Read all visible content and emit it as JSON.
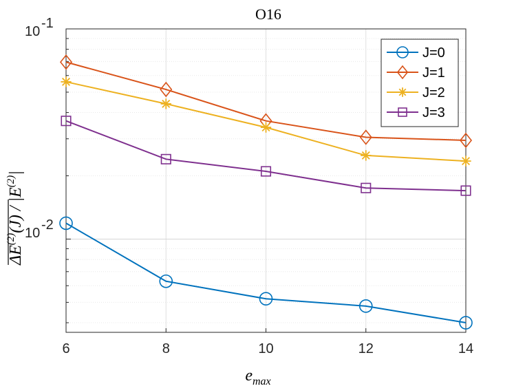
{
  "chart_data": {
    "type": "line",
    "title": "O16",
    "xlabel": "e_max",
    "ylabel": "ΔE(2)(J) / |E(2)|",
    "yscale": "log",
    "xlim": [
      6,
      14
    ],
    "ylim": [
      0.0036,
      0.1
    ],
    "xticks": [
      6,
      8,
      10,
      12,
      14
    ],
    "grid": true,
    "legend_position": "top-right",
    "series": [
      {
        "name": "J=0",
        "color": "#0072BD",
        "marker": "circle",
        "x": [
          6,
          8,
          10,
          12,
          14
        ],
        "values": [
          0.0119,
          0.0063,
          0.0052,
          0.0048,
          0.004
        ]
      },
      {
        "name": "J=1",
        "color": "#D95319",
        "marker": "diamond",
        "x": [
          6,
          8,
          10,
          12,
          14
        ],
        "values": [
          0.0695,
          0.0515,
          0.0365,
          0.0305,
          0.0295
        ]
      },
      {
        "name": "J=2",
        "color": "#EDB120",
        "marker": "star",
        "x": [
          6,
          8,
          10,
          12,
          14
        ],
        "values": [
          0.056,
          0.044,
          0.034,
          0.025,
          0.0235
        ]
      },
      {
        "name": "J=3",
        "color": "#7E2F8E",
        "marker": "square",
        "x": [
          6,
          8,
          10,
          12,
          14
        ],
        "values": [
          0.0365,
          0.024,
          0.021,
          0.0175,
          0.017
        ]
      }
    ]
  }
}
